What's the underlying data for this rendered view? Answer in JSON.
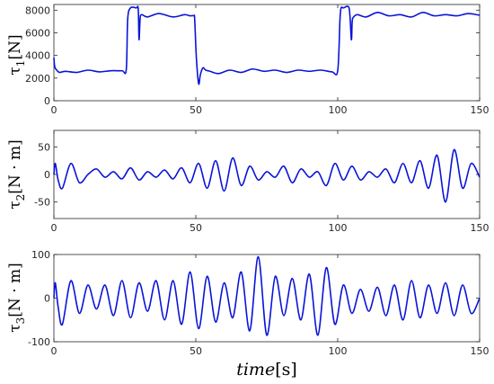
{
  "colors": {
    "series": "#0a14d8",
    "axis": "#262626",
    "background": "#ffffff"
  },
  "x_axis_label": {
    "main": "time",
    "unit": "[s]"
  },
  "chart_data": [
    {
      "type": "line",
      "ylabel": {
        "symbol": "τ",
        "sub": "1",
        "unit": "[N]"
      },
      "xlim": [
        0,
        150
      ],
      "ylim": [
        0,
        8500
      ],
      "xticks": [
        0,
        50,
        100,
        150
      ],
      "yticks": [
        0,
        2000,
        4000,
        6000,
        8000
      ],
      "series": [
        {
          "x": [
            0,
            0.3,
            1,
            2,
            4,
            8,
            12,
            16,
            20,
            24,
            25.5,
            26,
            27,
            29,
            29.7,
            30,
            30.4,
            31,
            33,
            37,
            42,
            46,
            48,
            49.3,
            49.6,
            50.2,
            51,
            51.6,
            52.5,
            53.5,
            55,
            58,
            62,
            66,
            70,
            74,
            78,
            82,
            86,
            90,
            94,
            98,
            100,
            100.8,
            101.2,
            102,
            104,
            104.8,
            105.1,
            105.6,
            107,
            110,
            114,
            118,
            122,
            126,
            130,
            134,
            138,
            142,
            146,
            150
          ],
          "y": [
            3800,
            3000,
            2700,
            2500,
            2600,
            2500,
            2700,
            2550,
            2650,
            2650,
            2750,
            7200,
            8200,
            8200,
            8200,
            5400,
            7300,
            7600,
            7400,
            7700,
            7400,
            7600,
            7500,
            7500,
            7200,
            3800,
            1500,
            2300,
            2900,
            2700,
            2600,
            2400,
            2700,
            2500,
            2800,
            2600,
            2700,
            2500,
            2700,
            2600,
            2700,
            2550,
            2650,
            7200,
            8200,
            8200,
            8200,
            5400,
            7000,
            7400,
            7600,
            7400,
            7800,
            7500,
            7600,
            7400,
            7800,
            7500,
            7600,
            7500,
            7700,
            7550
          ]
        }
      ]
    },
    {
      "type": "line",
      "ylabel": {
        "symbol": "τ",
        "sub": "2",
        "unit": "[N · m]"
      },
      "xlim": [
        0,
        150
      ],
      "ylim": [
        -80,
        80
      ],
      "xticks": [
        0,
        50,
        100,
        150
      ],
      "yticks": [
        -50,
        0,
        50
      ],
      "series": [
        {
          "x": [
            0,
            0.5,
            1.5,
            3,
            6,
            9,
            12,
            15,
            18,
            21,
            24,
            27,
            30,
            33,
            36,
            39,
            42,
            45,
            48,
            51,
            54,
            57,
            60,
            63,
            66,
            69,
            72,
            75,
            78,
            81,
            84,
            87,
            90,
            93,
            96,
            99,
            102,
            105,
            108,
            111,
            114,
            117,
            120,
            123,
            126,
            129,
            132,
            135,
            138,
            141,
            144,
            147,
            150
          ],
          "y": [
            0,
            20,
            -10,
            -25,
            20,
            -15,
            0,
            10,
            -5,
            5,
            -8,
            12,
            -10,
            5,
            -5,
            8,
            -8,
            12,
            -15,
            20,
            -25,
            25,
            -30,
            30,
            -20,
            15,
            -10,
            5,
            -5,
            15,
            -15,
            10,
            -5,
            5,
            -20,
            20,
            -10,
            15,
            -10,
            5,
            -5,
            10,
            -15,
            20,
            -15,
            25,
            -25,
            35,
            -50,
            45,
            -25,
            20,
            -5
          ]
        }
      ]
    },
    {
      "type": "line",
      "ylabel": {
        "symbol": "τ",
        "sub": "3",
        "unit": "[N · m]"
      },
      "xlim": [
        0,
        150
      ],
      "ylim": [
        -100,
        100
      ],
      "xticks": [
        0,
        50,
        100,
        150
      ],
      "yticks": [
        -100,
        0,
        100
      ],
      "series": [
        {
          "x": [
            0,
            0.5,
            1.5,
            3,
            6,
            9,
            12,
            15,
            18,
            21,
            24,
            27,
            30,
            33,
            36,
            39,
            42,
            45,
            48,
            51,
            54,
            57,
            60,
            63,
            66,
            69,
            72,
            75,
            78,
            81,
            84,
            87,
            90,
            93,
            96,
            99,
            102,
            105,
            108,
            111,
            114,
            117,
            120,
            123,
            126,
            129,
            132,
            135,
            138,
            141,
            144,
            147,
            150
          ],
          "y": [
            0,
            35,
            -20,
            -60,
            40,
            -35,
            30,
            -25,
            30,
            -40,
            40,
            -45,
            35,
            -30,
            40,
            -50,
            40,
            -60,
            60,
            -70,
            50,
            -55,
            35,
            -45,
            60,
            -75,
            95,
            -85,
            50,
            -40,
            45,
            -50,
            55,
            -85,
            70,
            -60,
            30,
            -35,
            20,
            -30,
            25,
            -40,
            30,
            -50,
            40,
            -45,
            30,
            -35,
            35,
            -40,
            30,
            -35,
            0
          ]
        }
      ]
    }
  ]
}
